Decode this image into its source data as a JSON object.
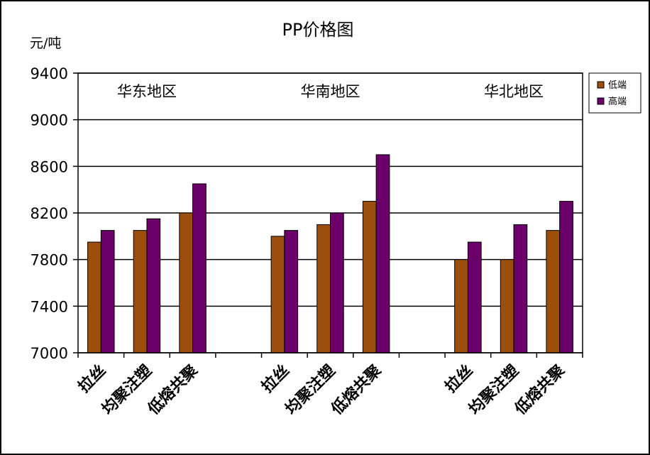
{
  "chart_data": {
    "type": "bar",
    "title": "PP价格图",
    "ylabel": "元/吨",
    "ylim": [
      7000,
      9400
    ],
    "yticks": [
      7000,
      7400,
      7800,
      8200,
      8600,
      9000,
      9400
    ],
    "grid": true,
    "legend_position": "right",
    "groups": [
      {
        "name": "华东地区",
        "categories": [
          "拉丝",
          "均聚注塑",
          "低熔共聚"
        ],
        "series": [
          {
            "name": "低端",
            "values": [
              7950,
              8050,
              8200
            ]
          },
          {
            "name": "高端",
            "values": [
              8050,
              8150,
              8450
            ]
          }
        ]
      },
      {
        "name": "华南地区",
        "categories": [
          "拉丝",
          "均聚注塑",
          "低熔共聚"
        ],
        "series": [
          {
            "name": "低端",
            "values": [
              8000,
              8100,
              8300
            ]
          },
          {
            "name": "高端",
            "values": [
              8050,
              8200,
              8700
            ]
          }
        ]
      },
      {
        "name": "华北地区",
        "categories": [
          "拉丝",
          "均聚注塑",
          "低熔共聚"
        ],
        "series": [
          {
            "name": "低端",
            "values": [
              7800,
              7800,
              8050
            ]
          },
          {
            "name": "高端",
            "values": [
              7950,
              8100,
              8300
            ]
          }
        ]
      }
    ],
    "legend": [
      "低端",
      "高端"
    ],
    "colors": {
      "低端": "#9c4f0c",
      "高端": "#6b006b"
    }
  }
}
